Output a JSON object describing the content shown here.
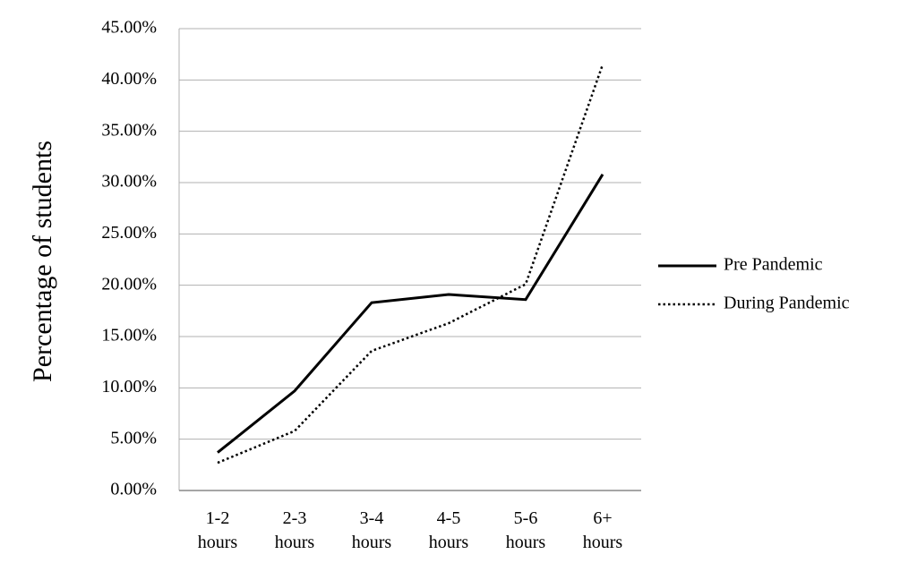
{
  "chart_data": {
    "type": "line",
    "y_label": "Percentage of students",
    "categories": [
      "1-2 hours",
      "2-3 hours",
      "3-4 hours",
      "4-5 hours",
      "5-6 hours",
      "6+ hours"
    ],
    "series": [
      {
        "name": "Pre Pandemic",
        "color": "#000000",
        "style": "solid",
        "values": [
          3.7,
          9.7,
          18.3,
          19.1,
          18.6,
          30.8
        ]
      },
      {
        "name": "During Pandemic",
        "color": "#000000",
        "style": "dotted",
        "values": [
          2.7,
          5.8,
          13.6,
          16.3,
          20.1,
          41.5
        ]
      }
    ],
    "ylim": [
      0,
      45
    ],
    "yticks": [
      {
        "value": 0,
        "label": "0.00%"
      },
      {
        "value": 5,
        "label": "5.00%"
      },
      {
        "value": 10,
        "label": "10.00%"
      },
      {
        "value": 15,
        "label": "15.00%"
      },
      {
        "value": 20,
        "label": "20.00%"
      },
      {
        "value": 25,
        "label": "25.00%"
      },
      {
        "value": 30,
        "label": "30.00%"
      },
      {
        "value": 35,
        "label": "35.00%"
      },
      {
        "value": 40,
        "label": "40.00%"
      },
      {
        "value": 45,
        "label": "45.00%"
      }
    ],
    "grid": true,
    "legend": "right"
  }
}
